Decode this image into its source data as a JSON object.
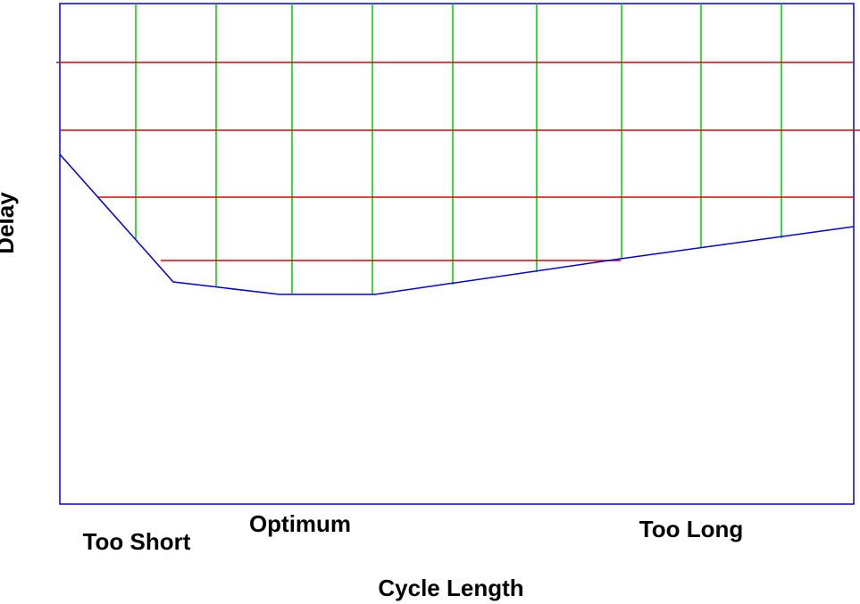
{
  "y_label": "Delay",
  "x_label": "Cycle Length",
  "regions": [
    "Too Short",
    "Optimum",
    "Too Long"
  ]
}
